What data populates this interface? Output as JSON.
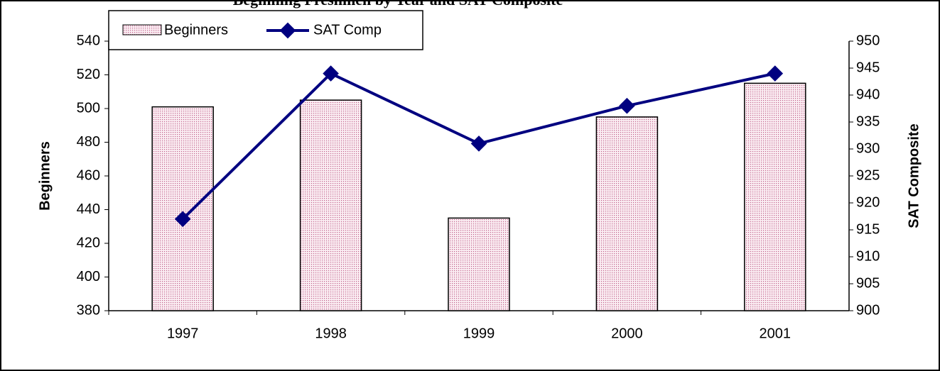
{
  "chart_data": {
    "type": "bar_line",
    "title": "Beginning Freshmen by Year and SAT Composite",
    "categories": [
      "1997",
      "1998",
      "1999",
      "2000",
      "2001"
    ],
    "series": [
      {
        "name": "Beginners",
        "type": "bar",
        "color": "#c0608a",
        "values": [
          501,
          505,
          435,
          495,
          515
        ]
      },
      {
        "name": "SAT Comp",
        "type": "line",
        "axis": "y2",
        "color": "#000080",
        "values": [
          917,
          944,
          931,
          938,
          944
        ]
      }
    ],
    "ylabel": "Beginners",
    "y2label": "SAT Composite",
    "ylim": [
      380,
      540
    ],
    "yticks": [
      380,
      400,
      420,
      440,
      460,
      480,
      500,
      520,
      540
    ],
    "y2lim": [
      900,
      950
    ],
    "y2ticks": [
      900,
      905,
      910,
      915,
      920,
      925,
      930,
      935,
      940,
      945,
      950
    ],
    "legend": "top-left",
    "grid": false
  }
}
